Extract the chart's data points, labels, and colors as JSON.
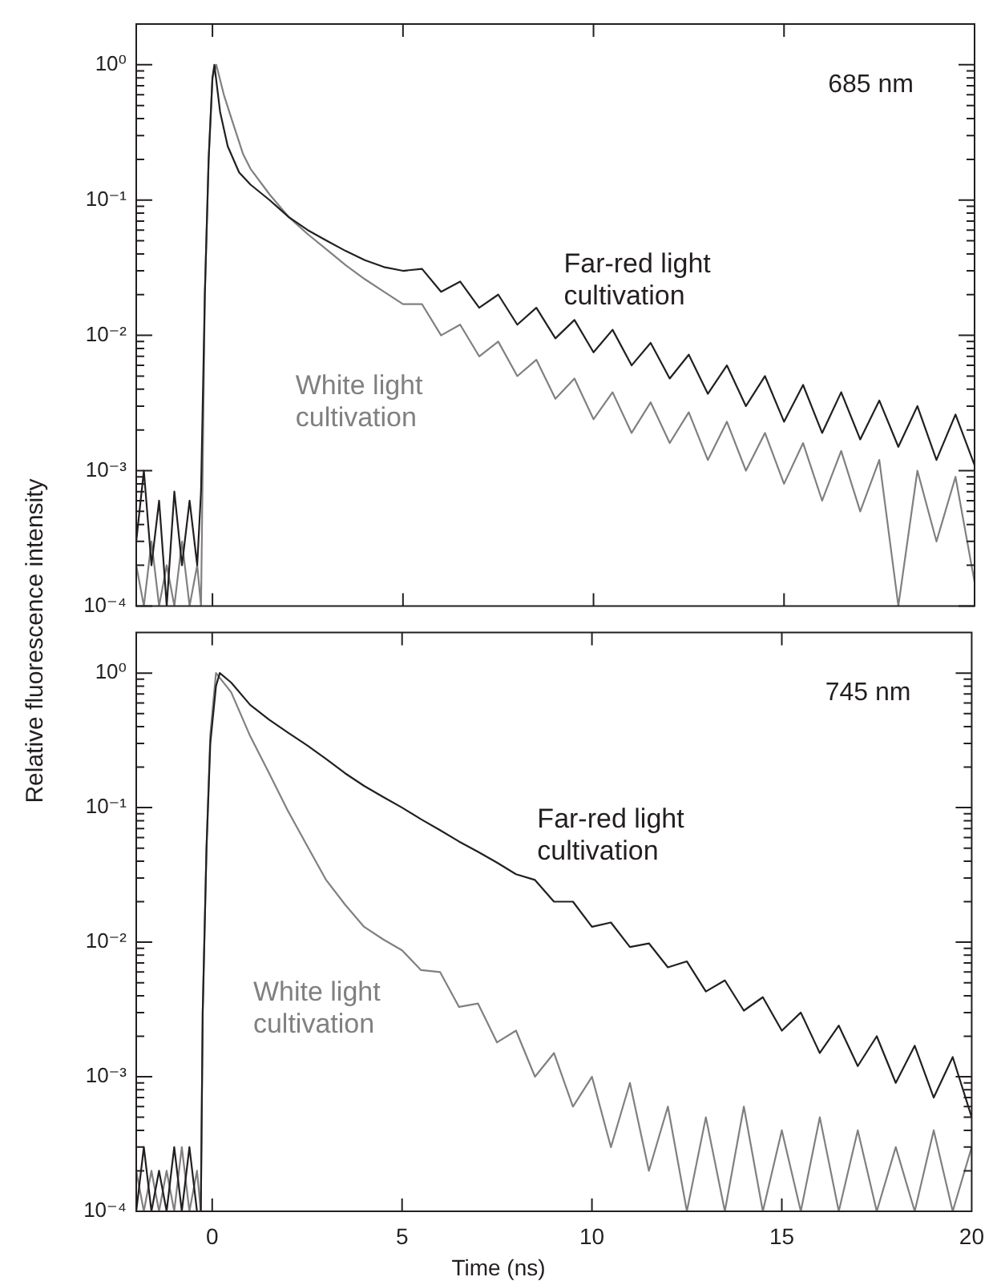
{
  "chart_data": [
    {
      "type": "line",
      "ylabel": "Relative fluorescence intensity",
      "annotations": [
        "685 nm"
      ],
      "log": true,
      "grid": false,
      "legend": false,
      "marker": "none",
      "line_style": "solid",
      "tick_labels": "y",
      "xlim": [
        -2,
        20
      ],
      "xticks": [
        0,
        5,
        10,
        15,
        20
      ],
      "ylim": [
        0.0001,
        2
      ],
      "yticks": [
        {
          "value": 0.0001,
          "label": "10⁻⁴"
        },
        {
          "value": 0.001,
          "label": "10⁻³"
        },
        {
          "value": 0.01,
          "label": "10⁻²"
        },
        {
          "value": 0.1,
          "label": "10⁻¹"
        },
        {
          "value": 1,
          "label": "10⁰"
        },
        {
          "value": 0.0002,
          "label": null
        },
        {
          "value": 0.0003,
          "label": null
        },
        {
          "value": 0.0004,
          "label": null
        },
        {
          "value": 0.0005,
          "label": null
        },
        {
          "value": 0.0006,
          "label": null
        },
        {
          "value": 0.0007,
          "label": null
        },
        {
          "value": 0.0008,
          "label": null
        },
        {
          "value": 0.0009,
          "label": null
        },
        {
          "value": 0.002,
          "label": null
        },
        {
          "value": 0.003,
          "label": null
        },
        {
          "value": 0.004,
          "label": null
        },
        {
          "value": 0.005,
          "label": null
        },
        {
          "value": 0.006,
          "label": null
        },
        {
          "value": 0.007,
          "label": null
        },
        {
          "value": 0.008,
          "label": null
        },
        {
          "value": 0.009,
          "label": null
        },
        {
          "value": 0.02,
          "label": null
        },
        {
          "value": 0.03,
          "label": null
        },
        {
          "value": 0.04,
          "label": null
        },
        {
          "value": 0.05,
          "label": null
        },
        {
          "value": 0.06,
          "label": null
        },
        {
          "value": 0.07,
          "label": null
        },
        {
          "value": 0.08,
          "label": null
        },
        {
          "value": 0.09,
          "label": null
        },
        {
          "value": 0.2,
          "label": null
        },
        {
          "value": 0.3,
          "label": null
        },
        {
          "value": 0.4,
          "label": null
        },
        {
          "value": 0.5,
          "label": null
        },
        {
          "value": 0.6,
          "label": null
        },
        {
          "value": 0.7,
          "label": null
        },
        {
          "value": 0.8,
          "label": null
        },
        {
          "value": 0.9,
          "label": null
        }
      ],
      "series": [
        {
          "name": "Far-red light cultivation",
          "color": "#231f20",
          "x": [
            -2,
            -1.8,
            -1.6,
            -1.4,
            -1.2,
            -1,
            -0.8,
            -0.6,
            -0.4,
            -0.3,
            -0.2,
            -0.1,
            0,
            0.05,
            0.2,
            0.4,
            0.7,
            1,
            1.5,
            2,
            2.5,
            3,
            3.5,
            4,
            4.5,
            5,
            5.5,
            6,
            6.5,
            7,
            7.5,
            8,
            8.5,
            9,
            9.5,
            10,
            10.5,
            11,
            11.5,
            12,
            12.5,
            13,
            13.5,
            14,
            14.5,
            15,
            15.5,
            16,
            16.5,
            17,
            17.5,
            18,
            18.5,
            19,
            19.5,
            20
          ],
          "values": [
            0.0003,
            0.001,
            0.0002,
            0.0006,
            0.0001,
            0.0007,
            0.0002,
            0.0006,
            0.0002,
            0.0007,
            0.02,
            0.2,
            0.8,
            1,
            0.45,
            0.25,
            0.16,
            0.13,
            0.1,
            0.075,
            0.06,
            0.05,
            0.042,
            0.036,
            0.032,
            0.03,
            0.031,
            0.021,
            0.025,
            0.016,
            0.02,
            0.012,
            0.016,
            0.0095,
            0.013,
            0.0075,
            0.011,
            0.006,
            0.0088,
            0.0048,
            0.0072,
            0.0037,
            0.006,
            0.003,
            0.005,
            0.0023,
            0.0043,
            0.0019,
            0.0038,
            0.0017,
            0.0033,
            0.0015,
            0.003,
            0.0012,
            0.0026,
            0.0011
          ]
        },
        {
          "name": "White light cultivation",
          "color": "#808080",
          "x": [
            -2,
            -1.8,
            -1.6,
            -1.4,
            -1.2,
            -1,
            -0.8,
            -0.6,
            -0.4,
            -0.3,
            -0.2,
            -0.1,
            0,
            0.1,
            0.3,
            0.5,
            0.8,
            1,
            1.5,
            2,
            2.5,
            3,
            3.5,
            4,
            4.5,
            5,
            5.5,
            6,
            6.5,
            7,
            7.5,
            8,
            8.5,
            9,
            9.5,
            10,
            10.5,
            11,
            11.5,
            12,
            12.5,
            13,
            13.5,
            14,
            14.5,
            15,
            15.5,
            16,
            16.5,
            17,
            17.5,
            18,
            18.5,
            19,
            19.5,
            20
          ],
          "values": [
            0.0002,
            0.0001,
            0.0003,
            0.0001,
            0.0002,
            0.0001,
            0.0003,
            0.0001,
            0.0002,
            0.0001,
            0.02,
            0.2,
            0.8,
            1,
            0.6,
            0.4,
            0.22,
            0.17,
            0.11,
            0.075,
            0.056,
            0.043,
            0.033,
            0.026,
            0.021,
            0.017,
            0.017,
            0.01,
            0.012,
            0.007,
            0.009,
            0.005,
            0.0066,
            0.0034,
            0.0048,
            0.0024,
            0.0038,
            0.0019,
            0.0032,
            0.0016,
            0.0027,
            0.0012,
            0.0023,
            0.001,
            0.0019,
            0.0008,
            0.0016,
            0.0006,
            0.0014,
            0.0005,
            0.0012,
            0.0001,
            0.001,
            0.0003,
            0.0009,
            0.00015
          ]
        }
      ]
    },
    {
      "type": "line",
      "xlabel": "Time (ns)",
      "annotations": [
        "745 nm"
      ],
      "log": true,
      "grid": false,
      "legend": false,
      "marker": "none",
      "line_style": "solid",
      "xlim": [
        -2,
        20
      ],
      "xticks": [
        0,
        5,
        10,
        15,
        20
      ],
      "ylim": [
        0.0001,
        2
      ],
      "yticks": [
        {
          "value": 0.0001,
          "label": "10⁻⁴"
        },
        {
          "value": 0.001,
          "label": "10⁻³"
        },
        {
          "value": 0.01,
          "label": "10⁻²"
        },
        {
          "value": 0.1,
          "label": "10⁻¹"
        },
        {
          "value": 1,
          "label": "10⁰"
        },
        {
          "value": 0.0002,
          "label": null
        },
        {
          "value": 0.0003,
          "label": null
        },
        {
          "value": 0.0004,
          "label": null
        },
        {
          "value": 0.0005,
          "label": null
        },
        {
          "value": 0.0006,
          "label": null
        },
        {
          "value": 0.0007,
          "label": null
        },
        {
          "value": 0.0008,
          "label": null
        },
        {
          "value": 0.0009,
          "label": null
        },
        {
          "value": 0.002,
          "label": null
        },
        {
          "value": 0.003,
          "label": null
        },
        {
          "value": 0.004,
          "label": null
        },
        {
          "value": 0.005,
          "label": null
        },
        {
          "value": 0.006,
          "label": null
        },
        {
          "value": 0.007,
          "label": null
        },
        {
          "value": 0.008,
          "label": null
        },
        {
          "value": 0.009,
          "label": null
        },
        {
          "value": 0.02,
          "label": null
        },
        {
          "value": 0.03,
          "label": null
        },
        {
          "value": 0.04,
          "label": null
        },
        {
          "value": 0.05,
          "label": null
        },
        {
          "value": 0.06,
          "label": null
        },
        {
          "value": 0.07,
          "label": null
        },
        {
          "value": 0.08,
          "label": null
        },
        {
          "value": 0.09,
          "label": null
        },
        {
          "value": 0.2,
          "label": null
        },
        {
          "value": 0.3,
          "label": null
        },
        {
          "value": 0.4,
          "label": null
        },
        {
          "value": 0.5,
          "label": null
        },
        {
          "value": 0.6,
          "label": null
        },
        {
          "value": 0.7,
          "label": null
        },
        {
          "value": 0.8,
          "label": null
        },
        {
          "value": 0.9,
          "label": null
        }
      ],
      "series": [
        {
          "name": "Far-red light cultivation",
          "color": "#231f20",
          "x": [
            -2,
            -1.8,
            -1.6,
            -1.4,
            -1.2,
            -1,
            -0.8,
            -0.6,
            -0.4,
            -0.3,
            -0.25,
            -0.15,
            -0.05,
            0.1,
            0.2,
            0.5,
            1,
            1.5,
            2,
            2.5,
            3,
            3.5,
            4,
            4.5,
            5,
            5.5,
            6,
            6.5,
            7,
            7.5,
            8,
            8.5,
            9,
            9.5,
            10,
            10.5,
            11,
            11.5,
            12,
            12.5,
            13,
            13.5,
            14,
            14.5,
            15,
            15.5,
            16,
            16.5,
            17,
            17.5,
            18,
            18.5,
            19,
            19.5,
            20
          ],
          "values": [
            0.0001,
            0.0003,
            0.0001,
            0.0002,
            0.0001,
            0.0003,
            0.0001,
            0.0003,
            0.0001,
            0.0001,
            0.003,
            0.05,
            0.3,
            0.8,
            1,
            0.85,
            0.58,
            0.45,
            0.36,
            0.29,
            0.23,
            0.18,
            0.145,
            0.12,
            0.1,
            0.082,
            0.068,
            0.056,
            0.047,
            0.039,
            0.032,
            0.029,
            0.02,
            0.02,
            0.013,
            0.014,
            0.0092,
            0.0098,
            0.0065,
            0.0072,
            0.0043,
            0.0052,
            0.0031,
            0.0039,
            0.0022,
            0.003,
            0.0015,
            0.0024,
            0.0012,
            0.002,
            0.0009,
            0.0017,
            0.0007,
            0.0014,
            0.0005
          ]
        },
        {
          "name": "White light cultivation",
          "color": "#808080",
          "x": [
            -2,
            -1.8,
            -1.6,
            -1.4,
            -1.2,
            -1,
            -0.8,
            -0.6,
            -0.4,
            -0.3,
            -0.25,
            -0.15,
            -0.05,
            0.1,
            0.5,
            1,
            1.5,
            2,
            2.5,
            3,
            3.5,
            4,
            4.5,
            5,
            5.5,
            6,
            6.5,
            7,
            7.5,
            8,
            8.5,
            9,
            9.5,
            10,
            10.5,
            11,
            11.5,
            12,
            12.5,
            13,
            13.5,
            14,
            14.5,
            15,
            15.5,
            16,
            16.5,
            17,
            17.5,
            18,
            18.5,
            19,
            19.5,
            20
          ],
          "values": [
            0.0002,
            0.0001,
            0.0002,
            0.0001,
            0.0002,
            0.0001,
            0.0003,
            0.0001,
            0.0002,
            0.0001,
            0.003,
            0.05,
            0.35,
            1,
            0.72,
            0.34,
            0.18,
            0.094,
            0.052,
            0.029,
            0.019,
            0.013,
            0.0105,
            0.0087,
            0.0062,
            0.006,
            0.0033,
            0.0035,
            0.0018,
            0.0022,
            0.001,
            0.0015,
            0.0006,
            0.001,
            0.0003,
            0.0009,
            0.0002,
            0.0006,
            0.0001,
            0.0005,
            0.0001,
            0.0006,
            0.0001,
            0.0004,
            0.0001,
            0.0005,
            0.0001,
            0.0004,
            0.0001,
            0.0003,
            0.0001,
            0.0004,
            0.0001,
            0.0003
          ]
        }
      ]
    }
  ]
}
